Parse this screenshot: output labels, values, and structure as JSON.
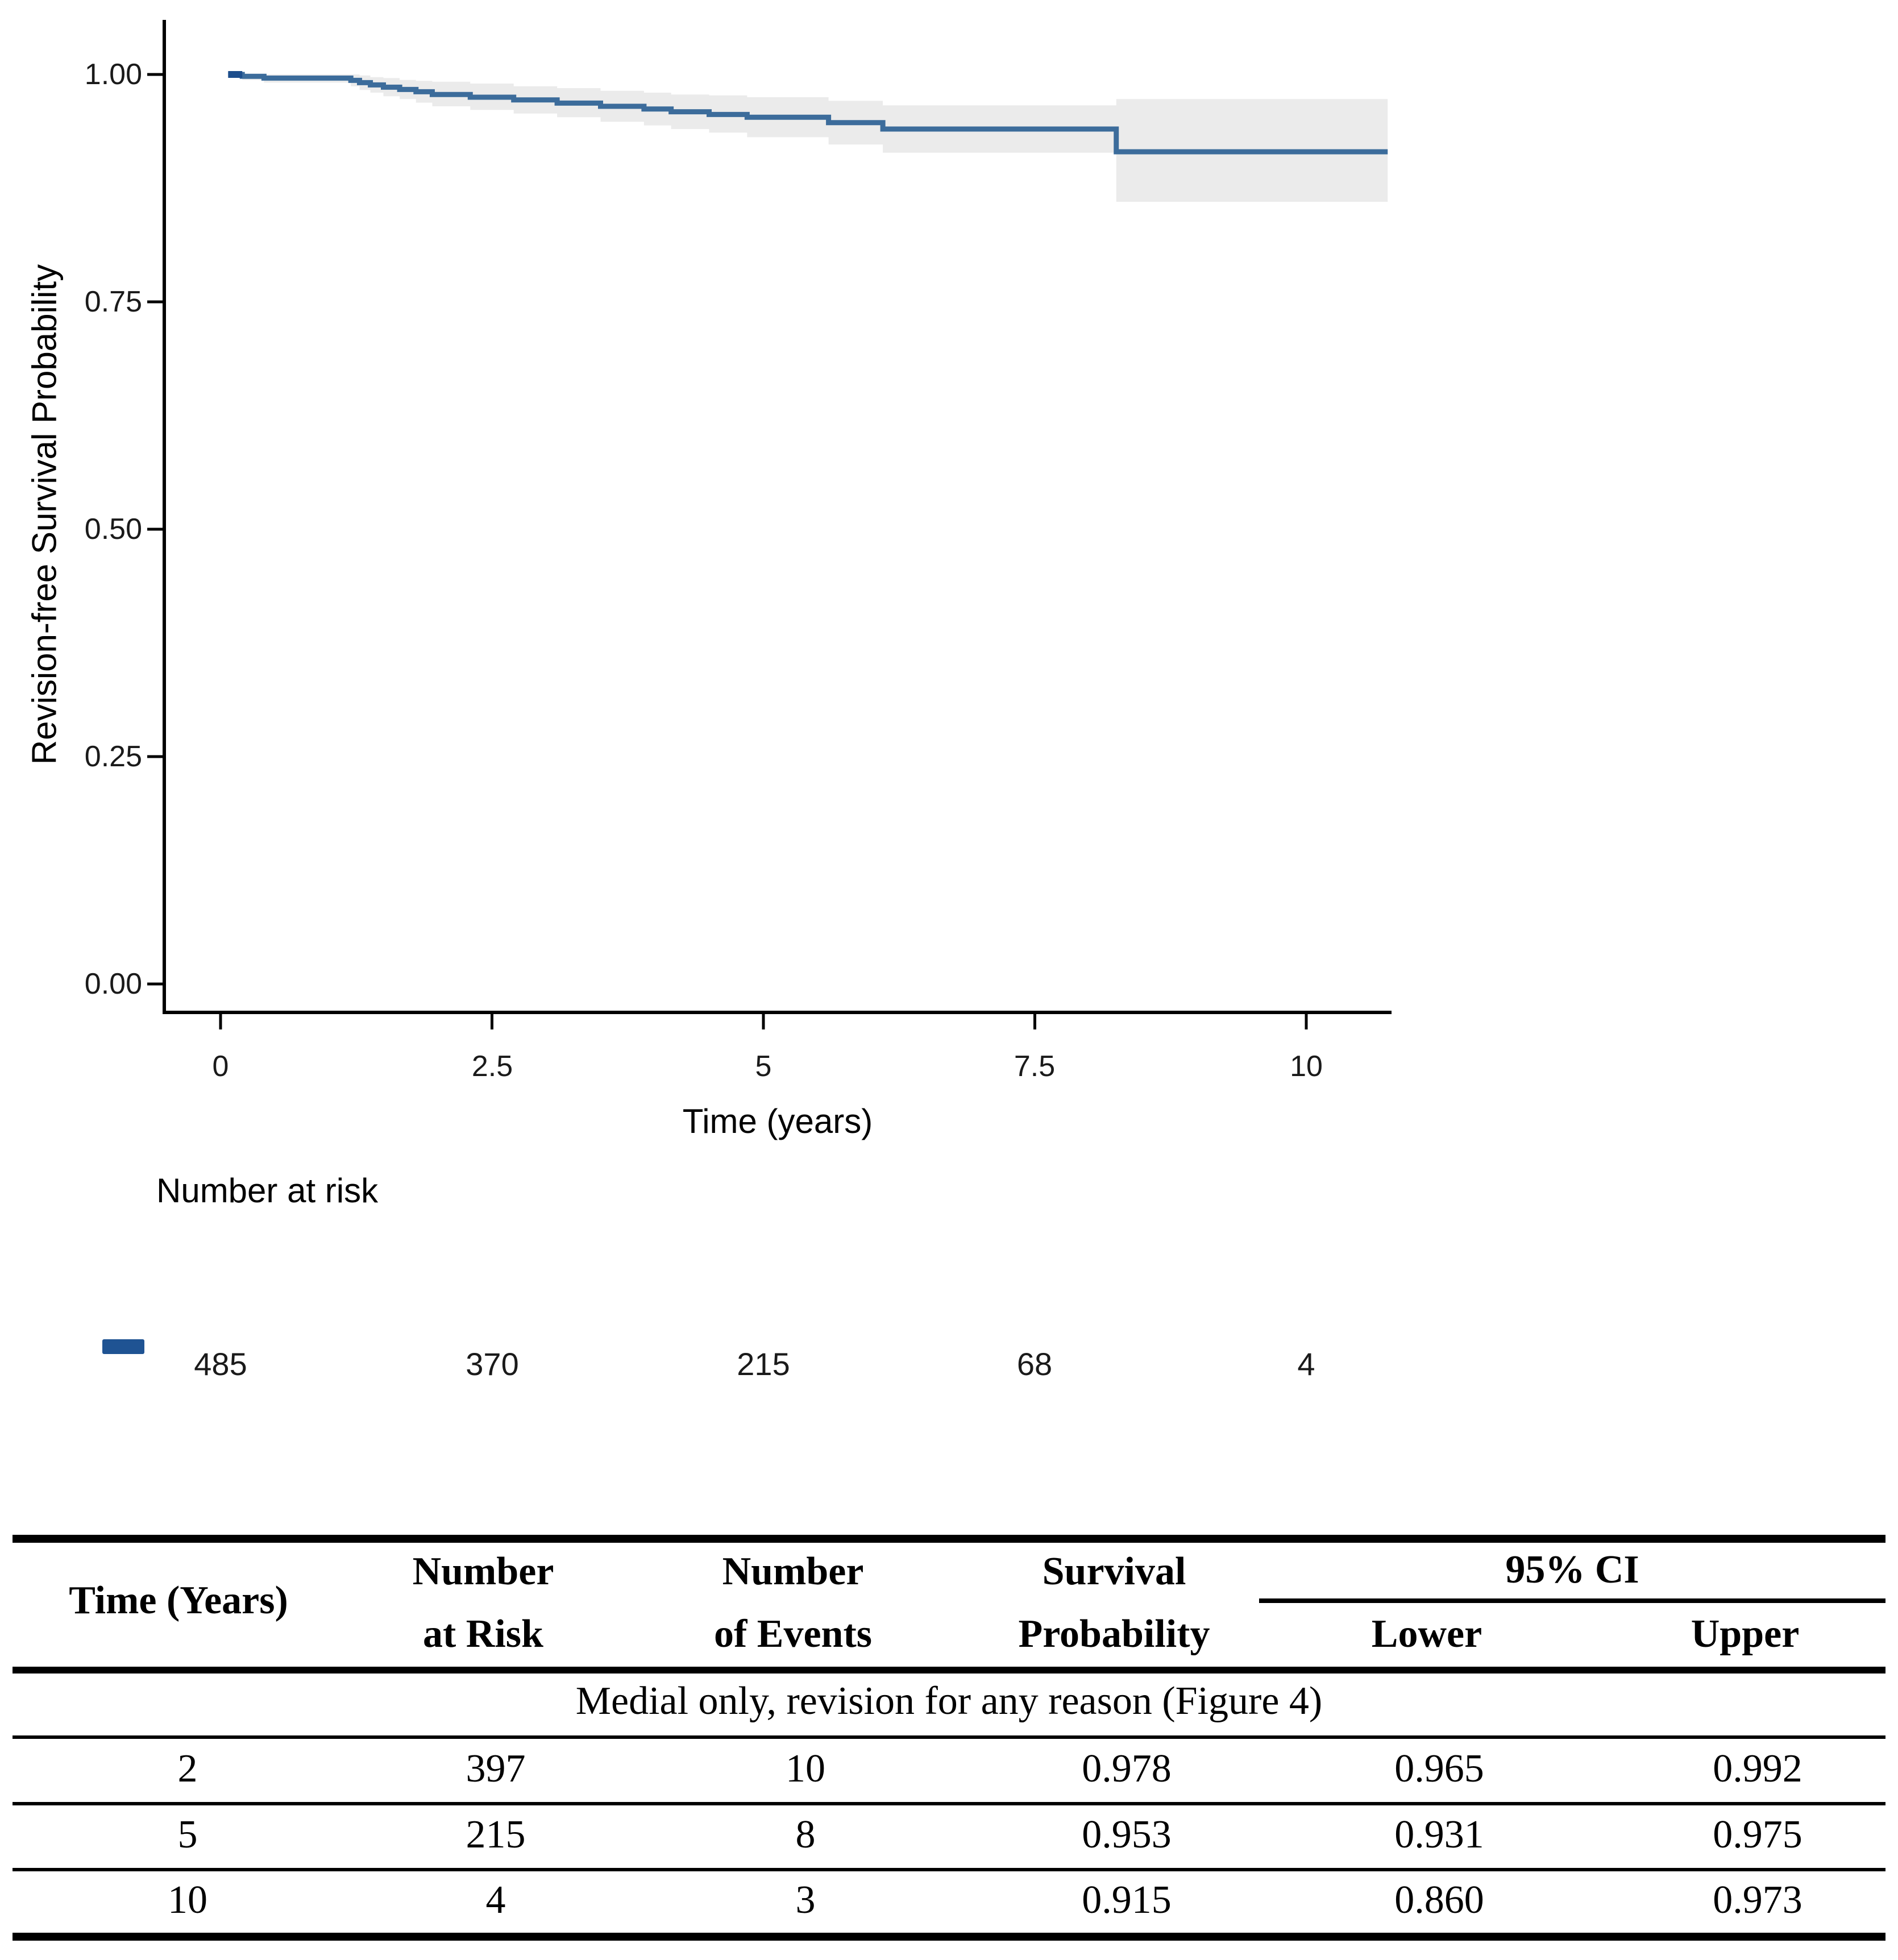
{
  "chart": {
    "y_axis": {
      "title": "Revision-free Survival Probability",
      "ticks": [
        "1.00",
        "0.75",
        "0.50",
        "0.25",
        "0.00"
      ]
    },
    "x_axis": {
      "title": "Time (years)",
      "ticks": [
        "0",
        "2.5",
        "5",
        "7.5",
        "10"
      ]
    },
    "colors": {
      "line": "#3c6c9b",
      "line_start": "#1d4e8c",
      "ci_band": "#ebebeb",
      "legend_marker": "#1f5393",
      "axis": "#000000"
    }
  },
  "chart_data": {
    "type": "line",
    "subtype": "kaplan_meier_step_with_95ci_band",
    "title": "",
    "xlabel": "Time (years)",
    "ylabel": "Revision-free Survival Probability",
    "xlim": [
      0,
      10.75
    ],
    "ylim": [
      0.0,
      1.0
    ],
    "x_ticks": [
      0,
      2.5,
      5,
      7.5,
      10
    ],
    "y_ticks": [
      1.0,
      0.75,
      0.5,
      0.25,
      0.0
    ],
    "grid": false,
    "legend_position": "none",
    "series": [
      {
        "name": "Medial only, revision for any reason",
        "steps_format": [
          "time_years",
          "survival",
          "ci_lower",
          "ci_upper"
        ],
        "steps": [
          [
            0.07,
            1.0,
            1.0,
            1.0
          ],
          [
            0.2,
            0.998,
            0.994,
            1.0
          ],
          [
            0.4,
            0.996,
            0.991,
            1.0
          ],
          [
            1.2,
            0.9935,
            0.987,
            1.0
          ],
          [
            1.28,
            0.991,
            0.983,
            0.999
          ],
          [
            1.38,
            0.9885,
            0.98,
            0.997
          ],
          [
            1.5,
            0.986,
            0.976,
            0.996
          ],
          [
            1.65,
            0.9835,
            0.973,
            0.994
          ],
          [
            1.8,
            0.981,
            0.969,
            0.993
          ],
          [
            1.95,
            0.978,
            0.965,
            0.992
          ],
          [
            2.3,
            0.975,
            0.961,
            0.99
          ],
          [
            2.7,
            0.972,
            0.957,
            0.987
          ],
          [
            3.1,
            0.9685,
            0.953,
            0.985
          ],
          [
            3.5,
            0.965,
            0.948,
            0.982
          ],
          [
            3.9,
            0.962,
            0.944,
            0.98
          ],
          [
            4.15,
            0.959,
            0.94,
            0.978
          ],
          [
            4.5,
            0.956,
            0.936,
            0.977
          ],
          [
            4.85,
            0.953,
            0.931,
            0.975
          ],
          [
            5.6,
            0.947,
            0.923,
            0.971
          ],
          [
            6.1,
            0.94,
            0.914,
            0.966
          ],
          [
            8.25,
            0.915,
            0.86,
            0.973
          ]
        ]
      }
    ]
  },
  "number_at_risk": {
    "heading": "Number at risk",
    "times": [
      0,
      2.5,
      5,
      7.5,
      10
    ],
    "values": [
      "485",
      "370",
      "215",
      "68",
      "4"
    ]
  },
  "table": {
    "headers": {
      "time": "Time (Years)",
      "n_risk_line1": "Number",
      "n_risk_line2": "at Risk",
      "n_events_line1": "Number",
      "n_events_line2": "of Events",
      "surv_line1": "Survival",
      "surv_line2": "Probability",
      "ci": "95% CI",
      "ci_lower": "Lower",
      "ci_upper": "Upper"
    },
    "group_row": "Medial only, revision for any reason (Figure 4)",
    "rows": [
      [
        "2",
        "397",
        "10",
        "0.978",
        "0.965",
        "0.992"
      ],
      [
        "5",
        "215",
        "8",
        "0.953",
        "0.931",
        "0.975"
      ],
      [
        "10",
        "4",
        "3",
        "0.915",
        "0.860",
        "0.973"
      ]
    ]
  }
}
